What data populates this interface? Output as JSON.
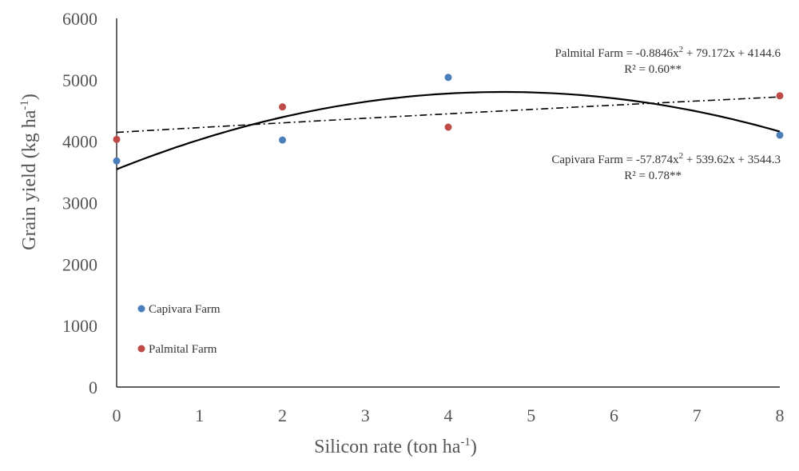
{
  "chart_data": {
    "type": "scatter",
    "title": "",
    "xlabel": "Silicon rate (ton ha",
    "xlabel_sup": "-1",
    "xlabel_tail": ")",
    "ylabel": "Grain yield (kg ha",
    "ylabel_sup": "-1",
    "ylabel_tail": ")",
    "xlim": [
      0,
      8
    ],
    "ylim": [
      0,
      6000
    ],
    "x_ticks": [
      "0",
      "1",
      "2",
      "3",
      "4",
      "5",
      "6",
      "7",
      "8"
    ],
    "y_ticks": [
      "0",
      "1000",
      "2000",
      "3000",
      "4000",
      "5000",
      "6000"
    ],
    "grid": false,
    "legend_position": "bottom-left",
    "series": [
      {
        "name": "Capivara Farm",
        "color": "#4a7ebb",
        "x": [
          0,
          2,
          4,
          8
        ],
        "y": [
          3680,
          4020,
          5040,
          4100
        ],
        "trend": {
          "style": "solid",
          "a": -57.874,
          "b": 539.62,
          "c": 3544.3
        }
      },
      {
        "name": "Palmital Farm",
        "color": "#be4b48",
        "x": [
          0,
          2,
          4,
          8
        ],
        "y": [
          4030,
          4560,
          4230,
          4740
        ],
        "trend": {
          "style": "dash-dot",
          "a": -0.8846,
          "b": 79.172,
          "c": 4144.6
        }
      }
    ],
    "annotations": [
      {
        "series": "Palmital Farm",
        "eq_prefix": "Palmital  Farm = -0.8846x",
        "eq_sup": "2",
        "eq_suffix": " + 79.172x  + 4144.6",
        "r2": "R² = 0.60**"
      },
      {
        "series": "Capivara Farm",
        "eq_prefix": "Capivara Farm = -57.874x",
        "eq_sup": "2",
        "eq_suffix": " + 539.62x  + 3544.3",
        "r2": "R² = 0.78**"
      }
    ]
  }
}
